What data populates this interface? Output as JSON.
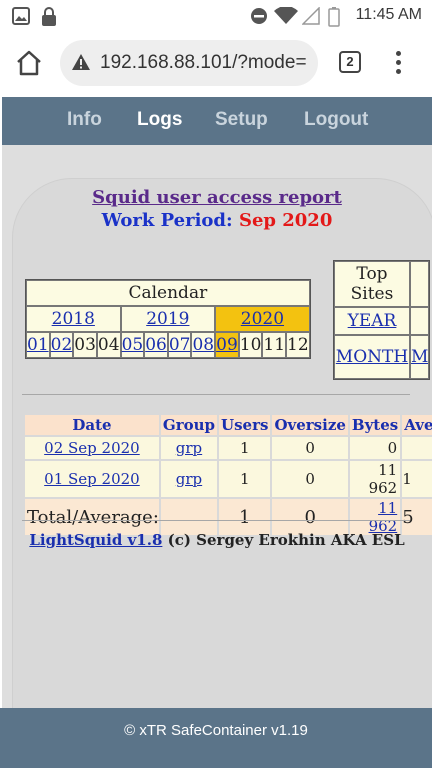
{
  "status_bar": {
    "time": "11:45 AM",
    "icons": [
      "gallery-icon",
      "lock-icon",
      "dnd-icon",
      "wifi-icon",
      "signal-icon",
      "battery-icon"
    ]
  },
  "browser": {
    "url": "192.168.88.101/?mode=",
    "tab_count": "2",
    "icons": [
      "home-icon",
      "warning-icon",
      "menu-icon"
    ]
  },
  "nav": {
    "items": [
      {
        "label": "Info",
        "active": false
      },
      {
        "label": "Logs",
        "active": true
      },
      {
        "label": "Setup",
        "active": false
      },
      {
        "label": "Logout",
        "active": false
      }
    ]
  },
  "report": {
    "title": "Squid user access report",
    "period_label": "Work Period:",
    "period_value": "Sep 2020"
  },
  "calendar": {
    "header": "Calendar",
    "years": [
      "2018",
      "2019",
      "2020"
    ],
    "selected_year": "2020",
    "months": [
      "01",
      "02",
      "03",
      "04",
      "05",
      "06",
      "07",
      "08",
      "09",
      "10",
      "11",
      "12"
    ],
    "linked_months": [
      "01",
      "02",
      "05",
      "06",
      "07",
      "08",
      "09"
    ],
    "selected_month": "09"
  },
  "top_sites": {
    "header_line1": "Top",
    "header_line2": "Sites",
    "year_link": "YEAR",
    "month_link": "MONTH",
    "clipped_link": "M"
  },
  "table": {
    "columns": [
      "Date",
      "Group",
      "Users",
      "Oversize",
      "Bytes",
      "Ave"
    ],
    "rows": [
      {
        "date": "02 Sep 2020",
        "group": "grp",
        "users": "1",
        "oversize": "0",
        "bytes": "0",
        "ave": ""
      },
      {
        "date": "01 Sep 2020",
        "group": "grp",
        "users": "1",
        "oversize": "0",
        "bytes": "11 962",
        "ave": "1"
      }
    ],
    "total": {
      "label": "Total/Average:",
      "users": "1",
      "oversize": "0",
      "bytes": "11 962",
      "ave": "5"
    }
  },
  "credit": {
    "link": "LightSquid v1.8",
    "text": "(c) Sergey Erokhin AKA ESL"
  },
  "footer": {
    "text": "©  xTR SafeContainer v1.19"
  },
  "colors": {
    "nav_bg": "#5b7489",
    "title_purple": "#5a2a8a",
    "period_blue": "#1a32c8",
    "period_red": "#e31818",
    "selected_gold": "#f3c210"
  }
}
